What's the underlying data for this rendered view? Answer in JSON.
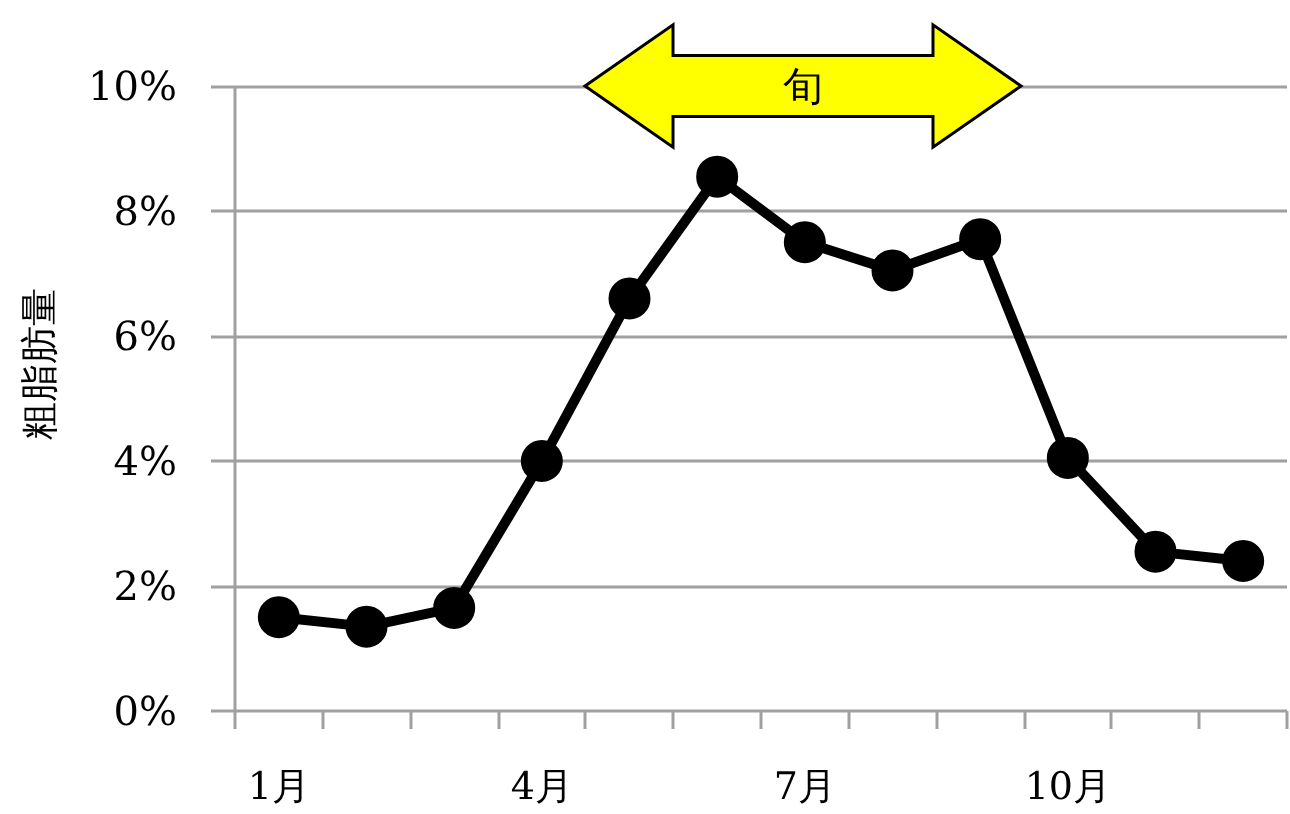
{
  "chart_data": {
    "type": "line",
    "ylabel": "粗脂肪量",
    "categories": [
      "1月",
      null,
      null,
      "4月",
      null,
      null,
      "7月",
      null,
      null,
      "10月",
      null,
      null
    ],
    "series": [
      {
        "color": "#000000",
        "values": [
          1.5,
          1.35,
          1.65,
          4.0,
          6.6,
          8.55,
          7.5,
          7.05,
          7.55,
          4.05,
          2.55,
          2.4
        ]
      }
    ],
    "ylim": [
      0,
      10
    ],
    "yticks": [
      {
        "value": 0,
        "label": "0%"
      },
      {
        "value": 2,
        "label": "2%"
      },
      {
        "value": 4,
        "label": "4%"
      },
      {
        "value": 6,
        "label": "6%"
      },
      {
        "value": 8,
        "label": "8%"
      },
      {
        "value": 10,
        "label": "10%"
      }
    ],
    "grid": "y",
    "marker": "circle",
    "line_style": "solid",
    "annotations": [
      "旬"
    ]
  }
}
